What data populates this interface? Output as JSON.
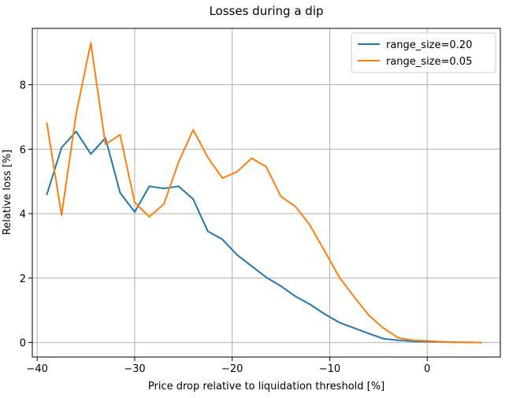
{
  "chart_data": {
    "type": "line",
    "title": "Losses during a dip",
    "xlabel": "Price drop relative to liquidation threshold [%]",
    "ylabel": "Relative loss [%]",
    "xlim": [
      -40.5,
      7.5
    ],
    "ylim": [
      -0.45,
      9.75
    ],
    "xticks": [
      -40,
      -30,
      -20,
      -10,
      0
    ],
    "xtick_labels": [
      "−40",
      "−30",
      "−20",
      "−10",
      "0"
    ],
    "yticks": [
      0,
      2,
      4,
      6,
      8
    ],
    "ytick_labels": [
      "0",
      "2",
      "4",
      "6",
      "8"
    ],
    "grid": true,
    "legend_position": "top-right",
    "series": [
      {
        "name": "range_size=0.20",
        "color": "#1f77b4",
        "x": [
          -39.0,
          -37.5,
          -36.0,
          -34.5,
          -33.0,
          -31.5,
          -30.0,
          -28.5,
          -27.0,
          -25.5,
          -24.0,
          -22.5,
          -21.0,
          -19.5,
          -18.0,
          -16.5,
          -15.0,
          -13.5,
          -12.0,
          -10.5,
          -9.0,
          -7.5,
          -6.0,
          -4.5,
          -3.0,
          -1.5,
          0.0,
          1.5,
          3.0,
          4.5,
          5.5
        ],
        "y": [
          4.6,
          6.05,
          6.55,
          5.85,
          6.35,
          4.65,
          4.05,
          4.85,
          4.78,
          4.85,
          4.45,
          3.45,
          3.2,
          2.72,
          2.37,
          2.02,
          1.75,
          1.43,
          1.18,
          0.88,
          0.62,
          0.45,
          0.28,
          0.12,
          0.07,
          0.04,
          0.03,
          0.02,
          0.01,
          0.005,
          0.0
        ]
      },
      {
        "name": "range_size=0.05",
        "color": "#ff7f0e",
        "x": [
          -39.0,
          -37.5,
          -36.0,
          -34.5,
          -33.0,
          -31.5,
          -30.0,
          -28.5,
          -27.0,
          -25.5,
          -24.0,
          -22.5,
          -21.0,
          -19.5,
          -18.0,
          -16.5,
          -15.0,
          -13.5,
          -12.0,
          -10.5,
          -9.0,
          -7.5,
          -6.0,
          -4.5,
          -3.0,
          -1.5,
          0.0,
          1.5,
          3.0,
          4.5,
          5.5
        ],
        "y": [
          6.8,
          3.95,
          7.1,
          9.3,
          6.15,
          6.45,
          4.35,
          3.9,
          4.3,
          5.6,
          6.6,
          5.75,
          5.1,
          5.3,
          5.72,
          5.45,
          4.53,
          4.22,
          3.63,
          2.83,
          2.02,
          1.42,
          0.85,
          0.45,
          0.15,
          0.07,
          0.05,
          0.02,
          0.01,
          0.005,
          0.0
        ]
      }
    ]
  }
}
